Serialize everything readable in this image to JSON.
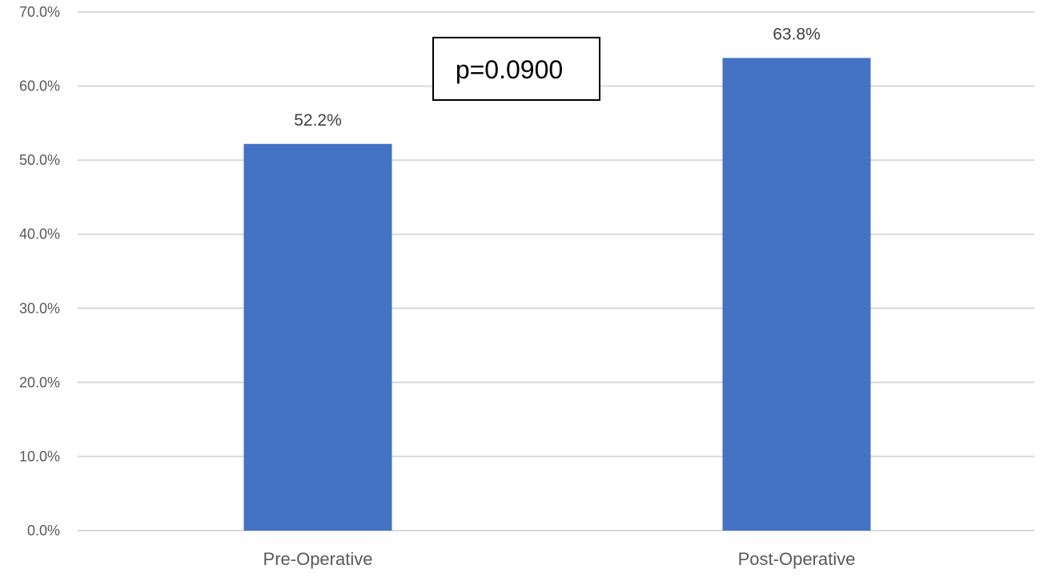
{
  "chart_data": {
    "type": "bar",
    "categories": [
      "Pre-Operative",
      "Post-Operative"
    ],
    "values": [
      52.2,
      63.8
    ],
    "data_labels": [
      "52.2%",
      "63.8%"
    ],
    "ylim": [
      0,
      70
    ],
    "yticks": [
      0,
      10,
      20,
      30,
      40,
      50,
      60,
      70
    ],
    "ytick_labels": [
      "0.0%",
      "10.0%",
      "20.0%",
      "30.0%",
      "40.0%",
      "50.0%",
      "60.0%",
      "70.0%"
    ],
    "grid": true,
    "legend": "none",
    "bar_color": "#4472C4",
    "grid_color": "#D9D9D9",
    "annotation": "p=0.0900"
  }
}
